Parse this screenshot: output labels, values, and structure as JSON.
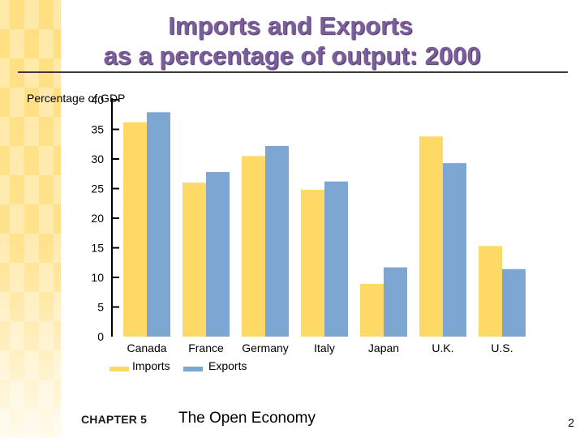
{
  "slide": {
    "title_line1": "Imports and Exports",
    "title_line2": "as a percentage of output:  2000",
    "footer_chapter": "CHAPTER 5",
    "footer_title": "The Open Economy",
    "page_number": "2"
  },
  "chart_data": {
    "type": "bar",
    "title": "Imports and Exports as a percentage of output:  2000",
    "ylabel": "Percentage of GDP",
    "xlabel": "",
    "ylim": [
      0,
      40
    ],
    "yticks": [
      0,
      5,
      10,
      15,
      20,
      25,
      30,
      35,
      40
    ],
    "categories": [
      "Canada",
      "France",
      "Germany",
      "Italy",
      "Japan",
      "U.K.",
      "U.S."
    ],
    "series": [
      {
        "name": "Imports",
        "color": "#ffd966",
        "values": [
          36.2,
          26.0,
          30.5,
          24.8,
          8.9,
          33.8,
          15.3
        ]
      },
      {
        "name": "Exports",
        "color": "#7ea6d3",
        "values": [
          37.9,
          27.8,
          32.2,
          26.2,
          11.7,
          29.3,
          11.4
        ]
      }
    ],
    "legend_position": "bottom-left",
    "grid": false
  }
}
